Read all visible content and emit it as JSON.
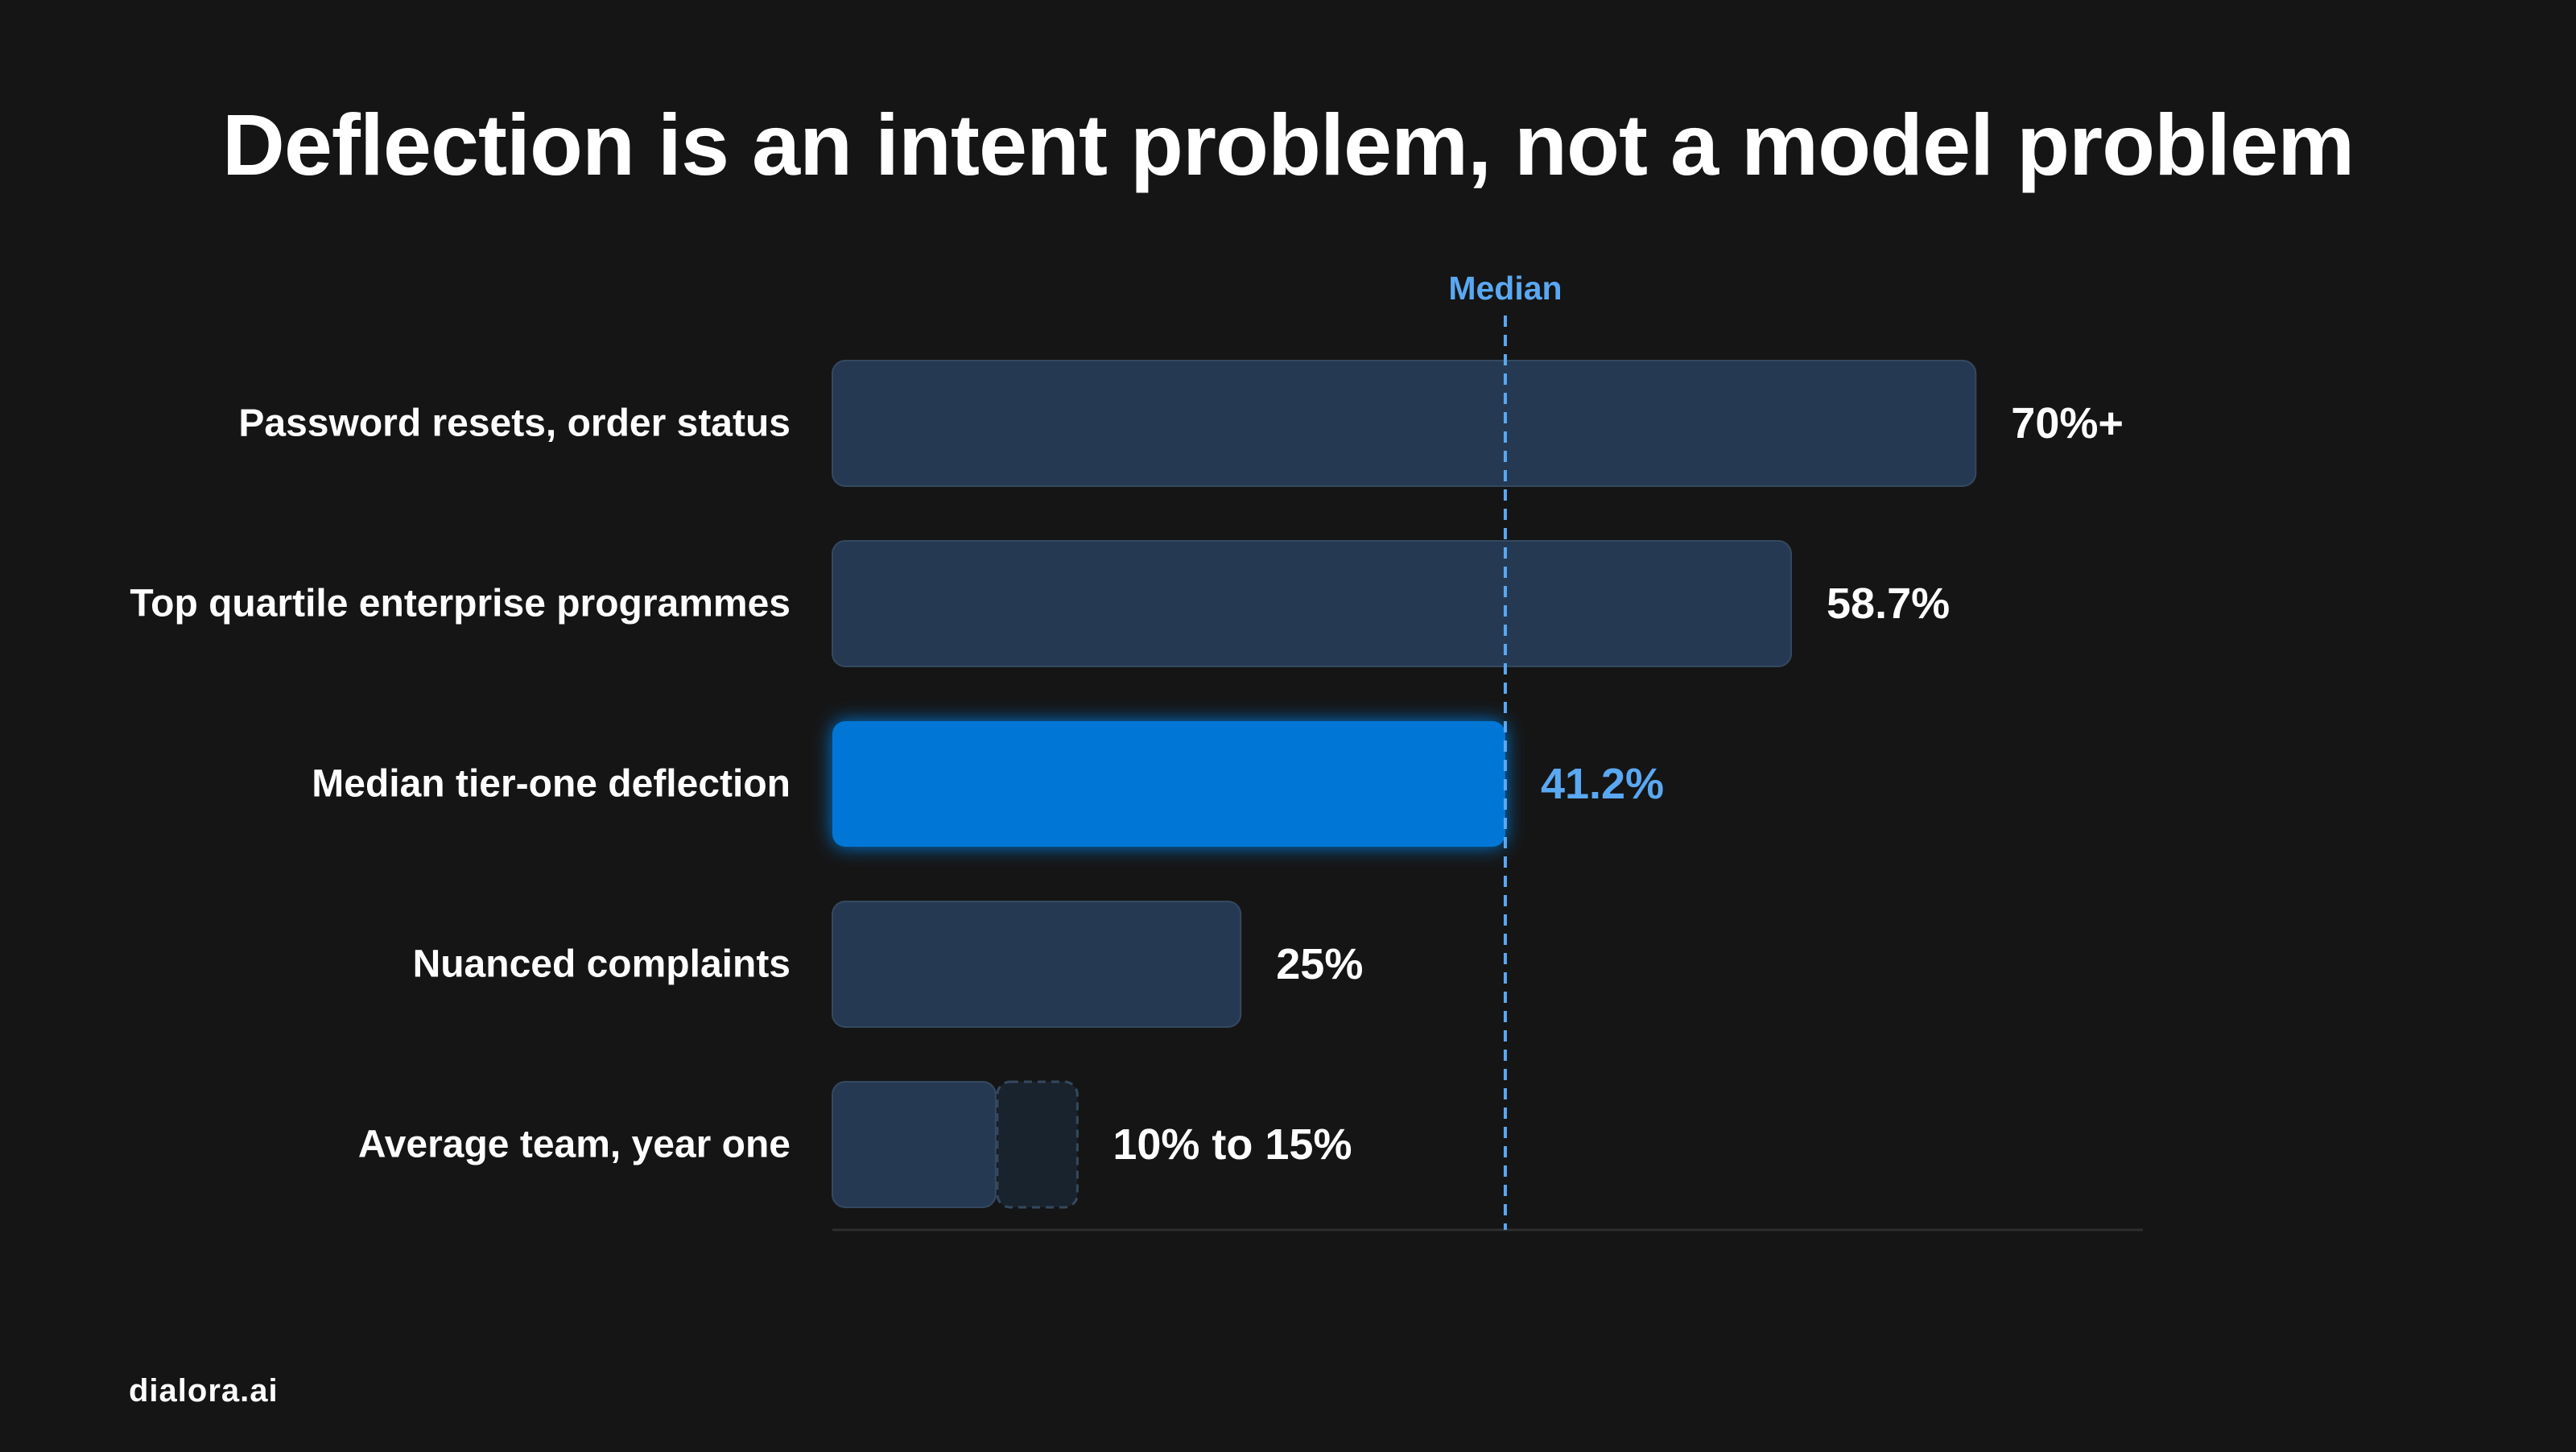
{
  "brand": "dialora.ai",
  "colors": {
    "background": "#151515",
    "bar": "#253a52",
    "bar_border": "#34495f",
    "highlight_bar": "#0077d6",
    "highlight_text": "#5aa8f2",
    "range_extension": "#19232d",
    "axis_line": "#2e2e2e"
  },
  "chart_data": {
    "type": "bar",
    "orientation": "horizontal",
    "title": "Deflection is an intent problem, not a model problem",
    "categories": [
      "Password resets, order status",
      "Top quartile enterprise programmes",
      "Median tier-one deflection",
      "Nuanced complaints",
      "Average team, year one"
    ],
    "values": [
      70,
      58.7,
      41.2,
      25,
      10
    ],
    "range_upper": [
      null,
      null,
      null,
      null,
      15
    ],
    "value_labels": [
      "70%+",
      "58.7%",
      "41.2%",
      "25%",
      "10% to 15%"
    ],
    "highlight_index": 2,
    "reference_line": {
      "label": "Median",
      "value": 41.2,
      "style": "dashed"
    },
    "xlim": [
      0,
      80
    ],
    "grid": false,
    "legend": "none"
  }
}
